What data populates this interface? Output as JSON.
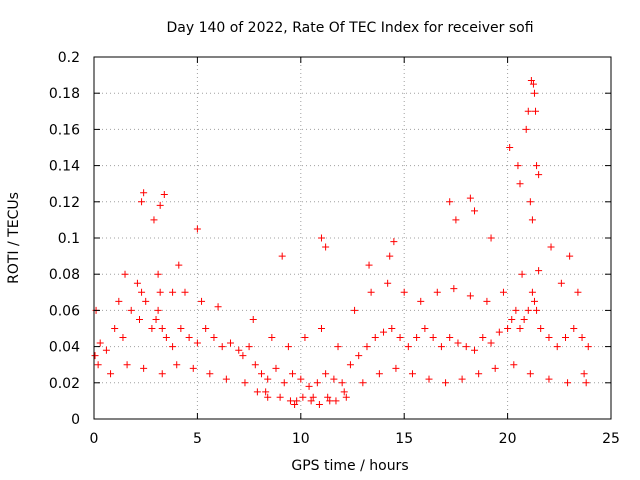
{
  "chart_data": {
    "type": "scatter",
    "title": "Day 140 of 2022, Rate Of TEC Index for receiver sofi",
    "xlabel": "GPS time / hours",
    "ylabel": "ROTI / TECUs",
    "xlim": [
      0,
      25
    ],
    "ylim": [
      0,
      0.2
    ],
    "xticks": [
      0,
      5,
      10,
      15,
      20,
      25
    ],
    "xtick_labels": [
      "0",
      "5",
      "10",
      "15",
      "20",
      "25"
    ],
    "yticks": [
      0,
      0.02,
      0.04,
      0.06,
      0.08,
      0.1,
      0.12,
      0.14,
      0.16,
      0.18,
      0.2
    ],
    "ytick_labels": [
      "0",
      "0.02",
      "0.04",
      "0.06",
      "0.08",
      "0.1",
      "0.12",
      "0.14",
      "0.16",
      "0.18",
      "0.2"
    ],
    "grid": true,
    "marker": "plus",
    "color": "#ff0000",
    "series": [
      {
        "name": "ROTI",
        "x": [
          0.05,
          0.3,
          0.6,
          1.0,
          1.4,
          1.8,
          2.2,
          2.3,
          2.5,
          2.8,
          3.0,
          3.1,
          3.2,
          3.3,
          3.5,
          3.8,
          4.2,
          4.6,
          5.0,
          5.4,
          5.8,
          6.2,
          6.6,
          7.0,
          7.2,
          7.5,
          7.8,
          8.1,
          8.4,
          8.8,
          9.2,
          9.6,
          10.0,
          10.4,
          10.8,
          11.2,
          11.6,
          12.0,
          12.4,
          12.8,
          13.2,
          13.6,
          14.0,
          14.4,
          14.8,
          15.2,
          15.6,
          16.0,
          16.4,
          16.8,
          17.2,
          17.6,
          18.0,
          18.4,
          18.8,
          19.2,
          19.6,
          20.0,
          20.2,
          20.4,
          20.6,
          20.8,
          21.0,
          21.2,
          21.3,
          21.4,
          21.6,
          22.0,
          22.4,
          22.8,
          23.2,
          23.6,
          23.9,
          0.2,
          0.8,
          1.6,
          2.4,
          3.3,
          4.0,
          4.8,
          5.6,
          6.4,
          7.3,
          8.3,
          9.0,
          9.8,
          10.6,
          11.4,
          12.2,
          13.0,
          13.8,
          14.6,
          15.4,
          16.2,
          17.0,
          17.8,
          18.6,
          19.4,
          20.3,
          21.1,
          22.0,
          22.9,
          23.7,
          0.1,
          1.2,
          2.1,
          3.1,
          4.4,
          5.2,
          6.0,
          7.7,
          8.6,
          9.4,
          10.2,
          11.0,
          11.8,
          12.6,
          13.4,
          14.2,
          15.0,
          15.8,
          16.6,
          17.4,
          18.2,
          19.0,
          19.8,
          20.7,
          21.5,
          22.6,
          23.4,
          1.5,
          2.3,
          2.4,
          2.9,
          3.2,
          3.4,
          5.0,
          9.1,
          11.0,
          11.2,
          13.3,
          14.3,
          14.5,
          17.2,
          17.5,
          18.2,
          18.4,
          19.2,
          20.1,
          20.5,
          20.9,
          21.0,
          21.15,
          21.25,
          21.3,
          21.35,
          21.4,
          21.5,
          20.6,
          21.1,
          21.2,
          22.1,
          23.0,
          4.1,
          7.9,
          8.4,
          9.5,
          9.7,
          10.1,
          10.5,
          10.9,
          11.3,
          11.7,
          12.1,
          3.8,
          23.8
        ],
        "y": [
          0.035,
          0.042,
          0.038,
          0.05,
          0.045,
          0.06,
          0.055,
          0.07,
          0.065,
          0.05,
          0.055,
          0.06,
          0.07,
          0.05,
          0.045,
          0.04,
          0.05,
          0.045,
          0.042,
          0.05,
          0.045,
          0.04,
          0.042,
          0.038,
          0.035,
          0.04,
          0.03,
          0.025,
          0.022,
          0.028,
          0.02,
          0.025,
          0.022,
          0.018,
          0.02,
          0.025,
          0.022,
          0.02,
          0.03,
          0.035,
          0.04,
          0.045,
          0.048,
          0.05,
          0.045,
          0.04,
          0.045,
          0.05,
          0.045,
          0.04,
          0.045,
          0.042,
          0.04,
          0.038,
          0.045,
          0.042,
          0.048,
          0.05,
          0.055,
          0.06,
          0.05,
          0.055,
          0.06,
          0.07,
          0.065,
          0.06,
          0.05,
          0.045,
          0.04,
          0.045,
          0.05,
          0.045,
          0.04,
          0.03,
          0.025,
          0.03,
          0.028,
          0.025,
          0.03,
          0.028,
          0.025,
          0.022,
          0.02,
          0.015,
          0.012,
          0.01,
          0.012,
          0.01,
          0.012,
          0.02,
          0.025,
          0.028,
          0.025,
          0.022,
          0.02,
          0.022,
          0.025,
          0.028,
          0.03,
          0.025,
          0.022,
          0.02,
          0.025,
          0.06,
          0.065,
          0.075,
          0.08,
          0.07,
          0.065,
          0.062,
          0.055,
          0.045,
          0.04,
          0.045,
          0.05,
          0.04,
          0.06,
          0.07,
          0.075,
          0.07,
          0.065,
          0.07,
          0.072,
          0.068,
          0.065,
          0.07,
          0.08,
          0.082,
          0.075,
          0.07,
          0.08,
          0.12,
          0.125,
          0.11,
          0.118,
          0.124,
          0.105,
          0.09,
          0.1,
          0.095,
          0.085,
          0.09,
          0.098,
          0.12,
          0.11,
          0.122,
          0.115,
          0.1,
          0.15,
          0.14,
          0.16,
          0.17,
          0.187,
          0.185,
          0.18,
          0.17,
          0.14,
          0.135,
          0.13,
          0.12,
          0.11,
          0.095,
          0.09,
          0.085,
          0.015,
          0.012,
          0.01,
          0.008,
          0.012,
          0.01,
          0.008,
          0.012,
          0.01,
          0.015,
          0.07,
          0.02
        ]
      }
    ]
  }
}
